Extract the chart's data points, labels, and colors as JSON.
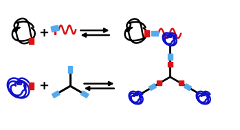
{
  "bg_color": "#ffffff",
  "black_color": "#000000",
  "red_color": "#dd1111",
  "dark_blue_color": "#1111cc",
  "light_blue_color": "#55aaee",
  "figsize": [
    3.49,
    1.89
  ],
  "dpi": 100,
  "lw_chain": 1.8,
  "lw_arm": 2.0
}
